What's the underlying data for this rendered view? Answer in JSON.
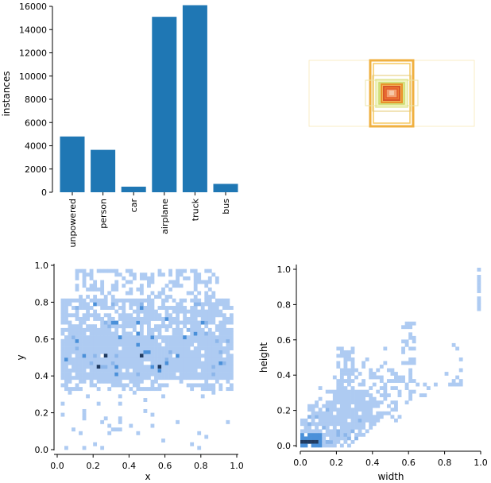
{
  "chart_data": [
    {
      "type": "bar",
      "ylabel": "instances",
      "categories": [
        "unpowered",
        "person",
        "car",
        "airplane",
        "truck",
        "bus"
      ],
      "values": [
        4800,
        3650,
        480,
        15100,
        16100,
        720
      ],
      "ylim": [
        0,
        16000
      ],
      "yticks": [
        0,
        2000,
        4000,
        6000,
        8000,
        10000,
        12000,
        14000,
        16000
      ],
      "color": "#1f77b4"
    },
    {
      "type": "box-overlay",
      "description_colors": [
        "#f5c842",
        "#f0a030",
        "#e8702a",
        "#d9e067",
        "#c7d84a"
      ]
    },
    {
      "type": "heatmap",
      "xlabel": "x",
      "ylabel": "y",
      "xticks": [
        0.0,
        0.2,
        0.4,
        0.6,
        0.8,
        1.0
      ],
      "yticks": [
        0.0,
        0.2,
        0.4,
        0.6,
        0.8,
        1.0
      ],
      "xlim": [
        0,
        1
      ],
      "ylim": [
        0,
        1
      ],
      "color_low": "#aecbf2",
      "color_mid": "#4a90d9",
      "color_high": "#1f3a60"
    },
    {
      "type": "heatmap",
      "xlabel": "width",
      "ylabel": "height",
      "xticks": [
        0.0,
        0.2,
        0.4,
        0.6,
        0.8,
        1.0
      ],
      "yticks": [
        0.0,
        0.2,
        0.4,
        0.6,
        0.8,
        1.0
      ],
      "xlim": [
        0,
        1
      ],
      "ylim": [
        0,
        1
      ],
      "color_low": "#aecbf2",
      "color_mid": "#4a90d9",
      "color_high": "#1f3a60"
    }
  ]
}
